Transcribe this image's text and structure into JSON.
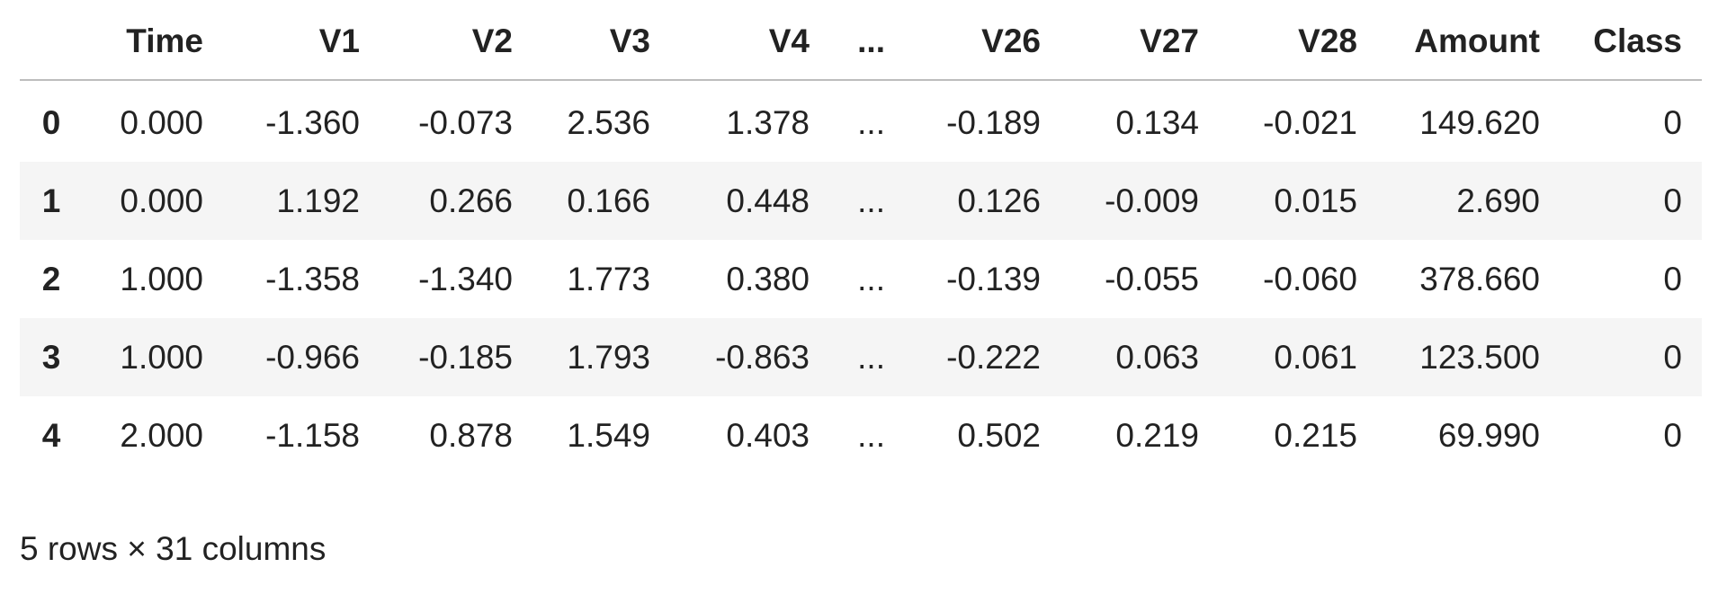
{
  "table": {
    "header": [
      "Time",
      "V1",
      "V2",
      "V3",
      "V4",
      "...",
      "V26",
      "V27",
      "V28",
      "Amount",
      "Class"
    ],
    "rows": [
      {
        "index": "0",
        "cells": [
          "0.000",
          "-1.360",
          "-0.073",
          "2.536",
          "1.378",
          "...",
          "-0.189",
          "0.134",
          "-0.021",
          "149.620",
          "0"
        ]
      },
      {
        "index": "1",
        "cells": [
          "0.000",
          "1.192",
          "0.266",
          "0.166",
          "0.448",
          "...",
          "0.126",
          "-0.009",
          "0.015",
          "2.690",
          "0"
        ]
      },
      {
        "index": "2",
        "cells": [
          "1.000",
          "-1.358",
          "-1.340",
          "1.773",
          "0.380",
          "...",
          "-0.139",
          "-0.055",
          "-0.060",
          "378.660",
          "0"
        ]
      },
      {
        "index": "3",
        "cells": [
          "1.000",
          "-0.966",
          "-0.185",
          "1.793",
          "-0.863",
          "...",
          "-0.222",
          "0.063",
          "0.061",
          "123.500",
          "0"
        ]
      },
      {
        "index": "4",
        "cells": [
          "2.000",
          "-1.158",
          "0.878",
          "1.549",
          "0.403",
          "...",
          "0.502",
          "0.219",
          "0.215",
          "69.990",
          "0"
        ]
      }
    ]
  },
  "footer": "5 rows × 31 columns"
}
